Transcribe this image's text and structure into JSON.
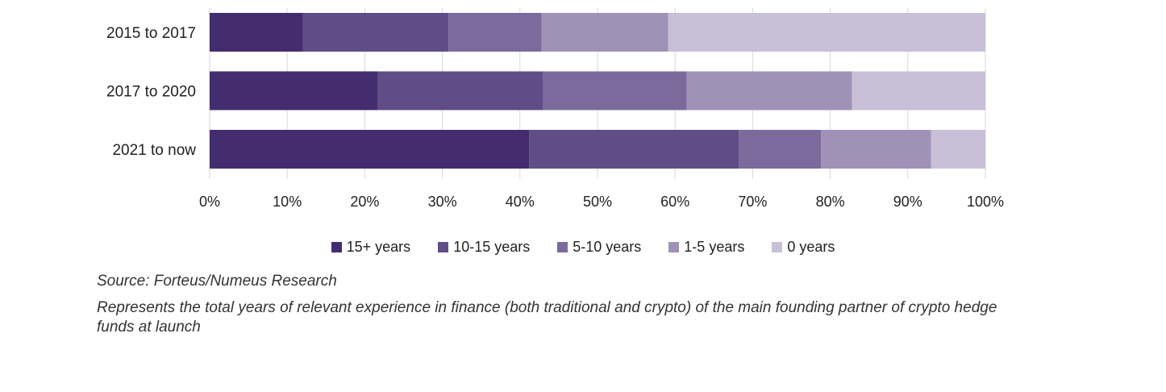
{
  "chart_data": {
    "type": "bar",
    "orientation": "horizontal",
    "stacked": true,
    "percent_stacked": true,
    "categories": [
      "2015 to 2017",
      "2017 to 2020",
      "2021 to now"
    ],
    "series": [
      {
        "name": "15+ years",
        "color": "#432c6f",
        "values": [
          12,
          21.7,
          41.2
        ]
      },
      {
        "name": "10-15 years",
        "color": "#604c86",
        "values": [
          18.8,
          21.3,
          27
        ]
      },
      {
        "name": "5-10 years",
        "color": "#7c6a9c",
        "values": [
          12,
          18.5,
          10.6
        ]
      },
      {
        "name": "1-5 years",
        "color": "#a091b7",
        "values": [
          16.3,
          21.3,
          14.2
        ]
      },
      {
        "name": "0 years",
        "color": "#c8c0d6",
        "values": [
          40.9,
          17.2,
          7
        ]
      }
    ],
    "xlim": [
      0,
      100
    ],
    "xticks": [
      0,
      10,
      20,
      30,
      40,
      50,
      60,
      70,
      80,
      90,
      100
    ],
    "xtick_labels": [
      "0%",
      "10%",
      "20%",
      "30%",
      "40%",
      "50%",
      "60%",
      "70%",
      "80%",
      "90%",
      "100%"
    ],
    "grid": "vertical",
    "legend_position": "bottom-center"
  },
  "source": "Source: Forteus/Numeus Research",
  "note": "Represents the total years of relevant experience in finance (both traditional and crypto) of the main founding partner of crypto hedge funds at launch"
}
